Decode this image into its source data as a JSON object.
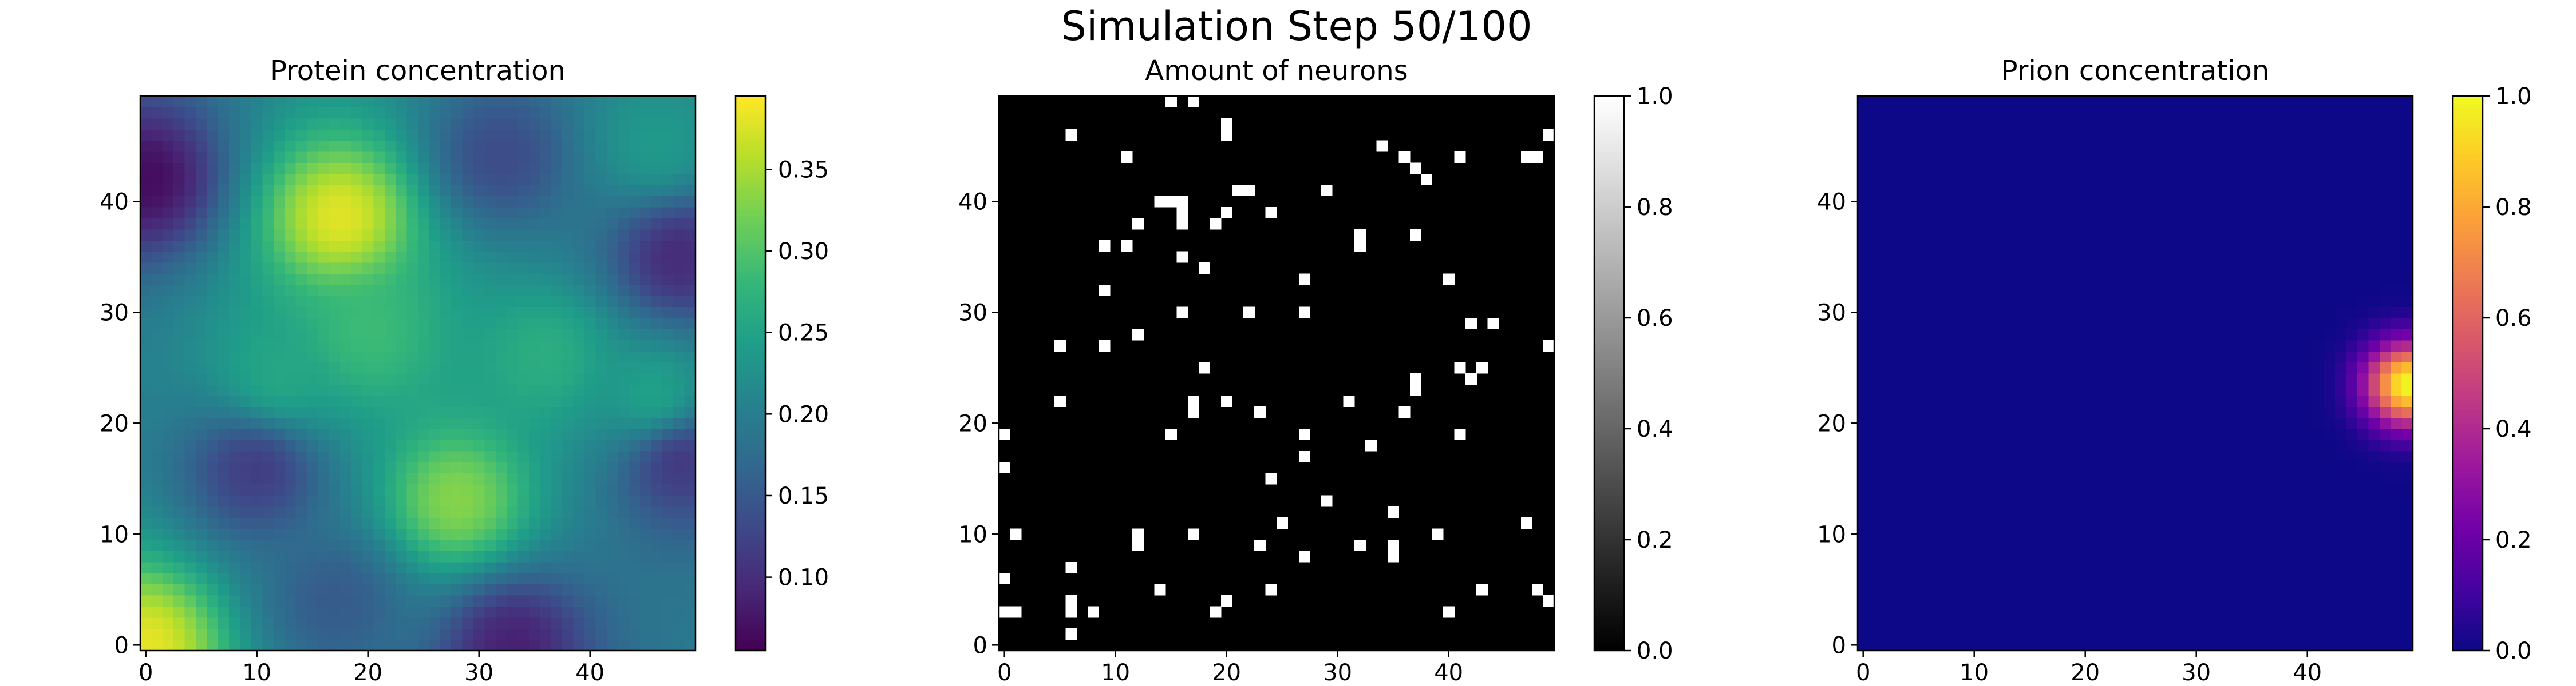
{
  "figure": {
    "suptitle": "Simulation Step 50/100"
  },
  "chart_data": [
    {
      "type": "heatmap",
      "title": "Protein concentration",
      "xlabel": "",
      "ylabel": "",
      "grid_size": [
        50,
        50
      ],
      "origin": "lower",
      "xlim": [
        0,
        49
      ],
      "ylim": [
        0,
        49
      ],
      "x_ticks": [
        0,
        10,
        20,
        30,
        40
      ],
      "y_ticks": [
        0,
        10,
        20,
        30,
        40
      ],
      "x_tick_labels": [
        "0",
        "10",
        "20",
        "30",
        "40"
      ],
      "y_tick_labels": [
        "0",
        "10",
        "20",
        "30",
        "40"
      ],
      "colormap": "viridis",
      "value_range": [
        0.055,
        0.395
      ],
      "colorbar_ticks": [
        0.1,
        0.15,
        0.2,
        0.25,
        0.3,
        0.35
      ],
      "colorbar_tick_labels": [
        "0.10",
        "0.15",
        "0.20",
        "0.25",
        "0.30",
        "0.35"
      ],
      "background_value": 0.205,
      "features": [
        {
          "kind": "peak",
          "x": 17.5,
          "y": 38.5,
          "value": 0.39
        },
        {
          "kind": "peak",
          "x": 0,
          "y": 0,
          "value": 0.39
        },
        {
          "kind": "peak",
          "x": 28,
          "y": 13,
          "value": 0.34
        },
        {
          "kind": "peak",
          "x": 20,
          "y": 28,
          "value": 0.29
        },
        {
          "kind": "peak",
          "x": 36,
          "y": 26,
          "value": 0.27
        },
        {
          "kind": "peak",
          "x": 12,
          "y": 24,
          "value": 0.26
        },
        {
          "kind": "peak",
          "x": 46,
          "y": 22,
          "value": 0.26
        },
        {
          "kind": "peak",
          "x": 46,
          "y": 45,
          "value": 0.24
        },
        {
          "kind": "trough",
          "x": 0,
          "y": 42,
          "value": 0.06
        },
        {
          "kind": "trough",
          "x": 33,
          "y": 0,
          "value": 0.08
        },
        {
          "kind": "trough",
          "x": 48,
          "y": 35,
          "value": 0.09
        },
        {
          "kind": "trough",
          "x": 48,
          "y": 17,
          "value": 0.1
        },
        {
          "kind": "trough",
          "x": 10,
          "y": 16,
          "value": 0.11
        },
        {
          "kind": "trough",
          "x": 32,
          "y": 44,
          "value": 0.13
        },
        {
          "kind": "trough",
          "x": 17,
          "y": 4,
          "value": 0.15
        }
      ]
    },
    {
      "type": "heatmap",
      "title": "Amount of neurons",
      "xlabel": "",
      "ylabel": "",
      "grid_size": [
        50,
        50
      ],
      "origin": "lower",
      "xlim": [
        0,
        49
      ],
      "ylim": [
        0,
        49
      ],
      "x_ticks": [
        0,
        10,
        20,
        30,
        40
      ],
      "y_ticks": [
        0,
        10,
        20,
        30,
        40
      ],
      "x_tick_labels": [
        "0",
        "10",
        "20",
        "30",
        "40"
      ],
      "y_tick_labels": [
        "0",
        "10",
        "20",
        "30",
        "40"
      ],
      "colormap": "gray",
      "value_range": [
        0.0,
        1.0
      ],
      "colorbar_ticks": [
        0.0,
        0.2,
        0.4,
        0.6,
        0.8,
        1.0
      ],
      "colorbar_tick_labels": [
        "0.0",
        "0.2",
        "0.4",
        "0.6",
        "0.8",
        "1.0"
      ],
      "background_value": 0.0,
      "cells_value": 1.0,
      "cells": [
        [
          15,
          49
        ],
        [
          17,
          49
        ],
        [
          49,
          46
        ],
        [
          6,
          46
        ],
        [
          20,
          47
        ],
        [
          20,
          46
        ],
        [
          34,
          45
        ],
        [
          36,
          44
        ],
        [
          11,
          44
        ],
        [
          47,
          44
        ],
        [
          48,
          44
        ],
        [
          41,
          44
        ],
        [
          37,
          43
        ],
        [
          38,
          42
        ],
        [
          29,
          41
        ],
        [
          21,
          41
        ],
        [
          22,
          41
        ],
        [
          16,
          40
        ],
        [
          15,
          40
        ],
        [
          14,
          40
        ],
        [
          20,
          39
        ],
        [
          16,
          39
        ],
        [
          24,
          39
        ],
        [
          16,
          38
        ],
        [
          12,
          38
        ],
        [
          19,
          38
        ],
        [
          32,
          37
        ],
        [
          9,
          36
        ],
        [
          11,
          36
        ],
        [
          37,
          37
        ],
        [
          32,
          36
        ],
        [
          16,
          35
        ],
        [
          18,
          34
        ],
        [
          27,
          33
        ],
        [
          40,
          33
        ],
        [
          9,
          32
        ],
        [
          16,
          30
        ],
        [
          22,
          30
        ],
        [
          27,
          30
        ],
        [
          42,
          29
        ],
        [
          44,
          29
        ],
        [
          12,
          28
        ],
        [
          5,
          27
        ],
        [
          9,
          27
        ],
        [
          49,
          27
        ],
        [
          18,
          25
        ],
        [
          41,
          25
        ],
        [
          43,
          25
        ],
        [
          42,
          24
        ],
        [
          37,
          24
        ],
        [
          37,
          23
        ],
        [
          17,
          22
        ],
        [
          17,
          21
        ],
        [
          20,
          22
        ],
        [
          31,
          22
        ],
        [
          5,
          22
        ],
        [
          23,
          21
        ],
        [
          36,
          21
        ],
        [
          0,
          19
        ],
        [
          15,
          19
        ],
        [
          27,
          19
        ],
        [
          41,
          19
        ],
        [
          33,
          18
        ],
        [
          27,
          17
        ],
        [
          0,
          16
        ],
        [
          24,
          15
        ],
        [
          29,
          13
        ],
        [
          35,
          12
        ],
        [
          25,
          11
        ],
        [
          47,
          11
        ],
        [
          1,
          10
        ],
        [
          12,
          10
        ],
        [
          17,
          10
        ],
        [
          39,
          10
        ],
        [
          12,
          9
        ],
        [
          23,
          9
        ],
        [
          32,
          9
        ],
        [
          35,
          9
        ],
        [
          35,
          8
        ],
        [
          27,
          8
        ],
        [
          6,
          7
        ],
        [
          14,
          5
        ],
        [
          24,
          5
        ],
        [
          43,
          5
        ],
        [
          48,
          5
        ],
        [
          0,
          6
        ],
        [
          6,
          4
        ],
        [
          20,
          4
        ],
        [
          49,
          4
        ],
        [
          0,
          3
        ],
        [
          1,
          3
        ],
        [
          6,
          3
        ],
        [
          8,
          3
        ],
        [
          19,
          3
        ],
        [
          40,
          3
        ],
        [
          6,
          1
        ]
      ]
    },
    {
      "type": "heatmap",
      "title": "Prion concentration",
      "xlabel": "",
      "ylabel": "",
      "grid_size": [
        50,
        50
      ],
      "origin": "lower",
      "xlim": [
        0,
        49
      ],
      "ylim": [
        0,
        49
      ],
      "x_ticks": [
        0,
        10,
        20,
        30,
        40
      ],
      "y_ticks": [
        0,
        10,
        20,
        30,
        40
      ],
      "x_tick_labels": [
        "0",
        "10",
        "20",
        "30",
        "40"
      ],
      "y_tick_labels": [
        "0",
        "10",
        "20",
        "30",
        "40"
      ],
      "colormap": "plasma",
      "value_range": [
        0.0,
        1.0
      ],
      "colorbar_ticks": [
        0.0,
        0.2,
        0.4,
        0.6,
        0.8,
        1.0
      ],
      "colorbar_tick_labels": [
        "0.0",
        "0.2",
        "0.4",
        "0.6",
        "0.8",
        "1.0"
      ],
      "background_value": 0.0,
      "features": [
        {
          "kind": "peak",
          "x": 49,
          "y": 23.5,
          "value": 1.0
        }
      ]
    }
  ]
}
